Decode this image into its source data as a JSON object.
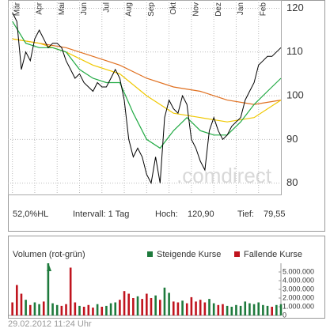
{
  "chart_data": [
    {
      "type": "line",
      "x": [
        0,
        1,
        2,
        3,
        4,
        5,
        6,
        7,
        8,
        9,
        10,
        11,
        12,
        13,
        14,
        15,
        16,
        17,
        18,
        19,
        20,
        21,
        22,
        23,
        24,
        25,
        26,
        27,
        28,
        29,
        30,
        31,
        32,
        33,
        34,
        35,
        36,
        37,
        38,
        39,
        40,
        41,
        42,
        43,
        44,
        45,
        46,
        47,
        48,
        49,
        50,
        51,
        52,
        53,
        54,
        55,
        56,
        57,
        58,
        59,
        60
      ],
      "xlim": [
        -1,
        60
      ],
      "xticks": [
        {
          "value": 0,
          "label": "Mär"
        },
        {
          "value": 5,
          "label": "Apr"
        },
        {
          "value": 10,
          "label": "Mai"
        },
        {
          "value": 15,
          "label": "Jun"
        },
        {
          "value": 20,
          "label": "Jul"
        },
        {
          "value": 25,
          "label": "Aug"
        },
        {
          "value": 30,
          "label": "Sep"
        },
        {
          "value": 35,
          "label": "Okt"
        },
        {
          "value": 40,
          "label": "Nov"
        },
        {
          "value": 45,
          "label": "Dez"
        },
        {
          "value": 50,
          "label": "Jan"
        },
        {
          "value": 55,
          "label": "Feb"
        }
      ],
      "ylim": [
        77.4,
        121.9
      ],
      "yticks": [
        80,
        90,
        100,
        110,
        120
      ],
      "grid": true,
      "series": [
        {
          "color": "#000000",
          "values": [
            119,
            117,
            106,
            110,
            108,
            113,
            115,
            113,
            111,
            112,
            112,
            111,
            108,
            106,
            104,
            105,
            103,
            102,
            101,
            103,
            102,
            102,
            104,
            106,
            104,
            99,
            90,
            86,
            88,
            86,
            82,
            80,
            86,
            80,
            95,
            99,
            97,
            96,
            100,
            98,
            90,
            88,
            85,
            83,
            92,
            95,
            92,
            90,
            91,
            93,
            94,
            95,
            99,
            101,
            103,
            107,
            108,
            109,
            109,
            110,
            111
          ]
        },
        {
          "color": "#22aa44",
          "x": [
            0,
            3,
            6,
            9,
            12,
            15,
            18,
            21,
            24,
            27,
            30,
            33,
            36,
            39,
            42,
            45,
            48,
            51,
            54,
            57,
            60
          ],
          "values": [
            117,
            112,
            111,
            111,
            110,
            106,
            104,
            103,
            103,
            96,
            90,
            88,
            92,
            95,
            92,
            91,
            91,
            94,
            98,
            101,
            104
          ]
        },
        {
          "color": "#f0c800",
          "x": [
            0,
            6,
            12,
            18,
            24,
            30,
            36,
            42,
            48,
            54,
            60
          ],
          "values": [
            113,
            112,
            110,
            107,
            105,
            100,
            96,
            95,
            94,
            95,
            99
          ]
        },
        {
          "color": "#e07020",
          "x": [
            0,
            6,
            12,
            18,
            24,
            30,
            36,
            42,
            48,
            54,
            60
          ],
          "values": [
            113,
            112,
            111,
            109,
            107,
            104,
            102,
            101,
            99,
            98,
            99
          ]
        }
      ]
    },
    {
      "type": "bar",
      "title": "Volumen (rot-grün)",
      "x": [
        0,
        1,
        2,
        3,
        4,
        5,
        6,
        7,
        8,
        9,
        10,
        11,
        12,
        13,
        14,
        15,
        16,
        17,
        18,
        19,
        20,
        21,
        22,
        23,
        24,
        25,
        26,
        27,
        28,
        29,
        30,
        31,
        32,
        33,
        34,
        35,
        36,
        37,
        38,
        39,
        40,
        41,
        42,
        43,
        44,
        45,
        46,
        47,
        48,
        49,
        50,
        51,
        52,
        53,
        54,
        55,
        56,
        57,
        58,
        59,
        60
      ],
      "xlim": [
        -1,
        60
      ],
      "ylim": [
        0,
        6000000
      ],
      "yticks": [
        0,
        {
          "value": 1000000,
          "label": "1.000.000"
        },
        {
          "value": 2000000,
          "label": "2.000.000"
        },
        {
          "value": 3000000,
          "label": "3.000.000"
        },
        {
          "value": 4000000,
          "label": "4.000.000"
        },
        {
          "value": 5000000,
          "label": "5.000.000"
        }
      ],
      "series": [
        {
          "name": "Steigende Kurse",
          "color": "#1e7a3c",
          "values": [
            null,
            null,
            null,
            1800000,
            null,
            1500000,
            1300000,
            null,
            6000000,
            1400000,
            1200000,
            null,
            null,
            null,
            null,
            1100000,
            null,
            null,
            null,
            1300000,
            null,
            1100000,
            1400000,
            1500000,
            null,
            null,
            null,
            null,
            2200000,
            null,
            null,
            null,
            2300000,
            null,
            3200000,
            2600000,
            null,
            null,
            1700000,
            null,
            null,
            null,
            null,
            null,
            1900000,
            1400000,
            null,
            null,
            1100000,
            1000000,
            1200000,
            1100000,
            1600000,
            1400000,
            1300000,
            1500000,
            1200000,
            1100000,
            null,
            1200000,
            1300000
          ]
        },
        {
          "name": "Fallende Kurse",
          "color": "#c0141e",
          "values": [
            1500000,
            3500000,
            2500000,
            null,
            1200000,
            null,
            null,
            1600000,
            null,
            null,
            null,
            1100000,
            1300000,
            5500000,
            1500000,
            null,
            1000000,
            1200000,
            900000,
            null,
            1000000,
            null,
            null,
            null,
            1800000,
            2800000,
            2500000,
            2000000,
            null,
            1900000,
            2500000,
            2000000,
            null,
            1800000,
            null,
            null,
            1600000,
            1500000,
            null,
            1400000,
            2100000,
            1600000,
            1800000,
            1500000,
            null,
            null,
            1200000,
            1300000,
            null,
            null,
            null,
            null,
            null,
            null,
            null,
            null,
            null,
            null,
            1000000,
            null,
            null
          ]
        }
      ]
    }
  ],
  "info": {
    "range": "52,0%HL",
    "interval": "Intervall: 1 Tag",
    "high_label": "Hoch:",
    "high": "120,90",
    "low_label": "Tief:",
    "low": "79,55"
  },
  "watermark": ".comdirect",
  "timestamp": "29.02.2012 11:24 Uhr"
}
